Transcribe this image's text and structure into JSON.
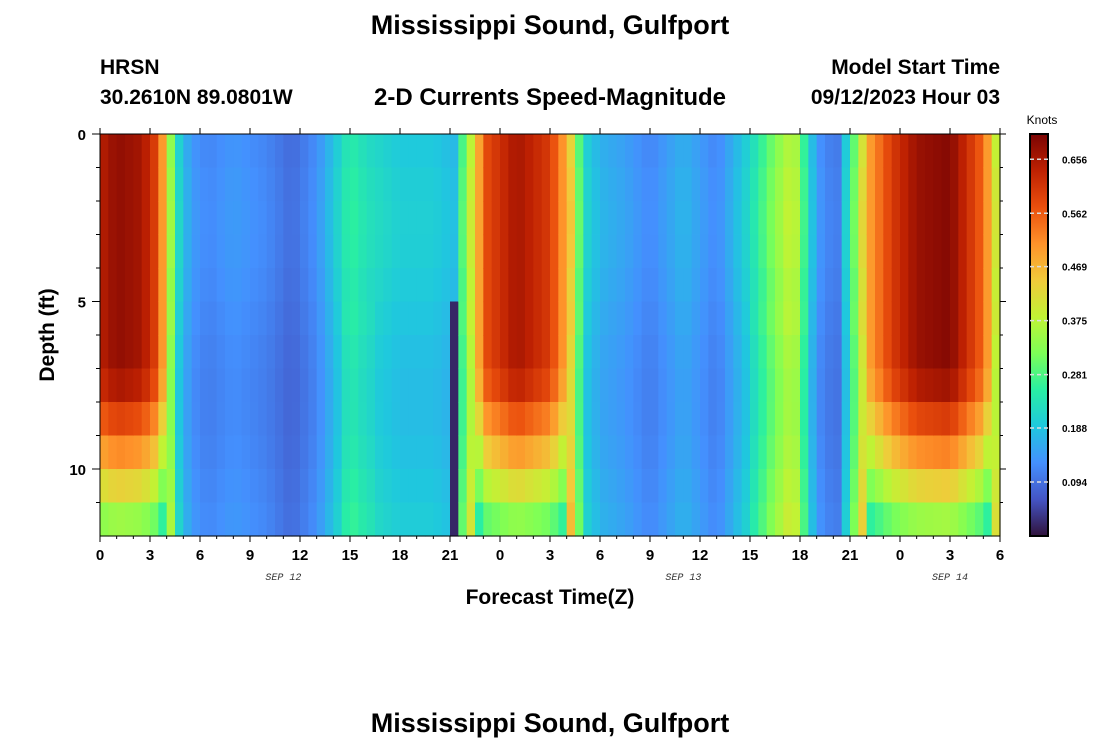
{
  "header": {
    "title": "Mississippi Sound, Gulfport",
    "station": "HRSN",
    "coords": "30.2610N  89.0801W",
    "subtitle": "2-D Currents Speed-Magnitude",
    "mst_label": "Model Start Time",
    "mst_value": "09/12/2023 Hour 03"
  },
  "footer": {
    "title": "Mississippi Sound, Gulfport"
  },
  "chart_data": {
    "type": "heatmap",
    "title": "2-D Currents Speed-Magnitude",
    "xlabel": "Forecast Time(Z)",
    "ylabel": "Depth (ft)",
    "x_tick_labels": [
      "0",
      "3",
      "6",
      "9",
      "12",
      "15",
      "18",
      "21",
      "0",
      "3",
      "6",
      "9",
      "12",
      "15",
      "18",
      "21",
      "0",
      "3",
      "6"
    ],
    "x_range_hours": [
      0,
      54
    ],
    "x_tick_step_hours": 3,
    "date_labels": [
      {
        "label": "SEP 12",
        "hour": 11
      },
      {
        "label": "SEP 13",
        "hour": 35
      },
      {
        "label": "SEP 14",
        "hour": 51
      }
    ],
    "y_tick_labels": [
      "0",
      "5",
      "10"
    ],
    "y_range_ft": [
      0,
      12
    ],
    "y_reversed": true,
    "colorbar": {
      "unit": "Knots",
      "tick_labels": [
        "0.656",
        "0.562",
        "0.469",
        "0.375",
        "0.281",
        "0.188",
        "0.094"
      ],
      "range": [
        0,
        0.7
      ],
      "colormap": [
        "#30123b",
        "#4454c4",
        "#4490fe",
        "#1fc8de",
        "#29efa2",
        "#7dff56",
        "#c1f334",
        "#f1ca3a",
        "#fe922a",
        "#ea4f0d",
        "#be2102",
        "#7a0403"
      ]
    },
    "time_step_hours": 0.5,
    "depth_layers_ft": [
      0.5,
      1.5,
      2.5,
      3.5,
      4.5,
      5.5,
      6.5,
      7.5,
      8.5,
      9.5,
      10.5,
      11.5
    ],
    "surface_speed_profile": [
      {
        "hour": 0,
        "speed": 0.64
      },
      {
        "hour": 1,
        "speed": 0.68
      },
      {
        "hour": 2.5,
        "speed": 0.66
      },
      {
        "hour": 3.5,
        "speed": 0.58
      },
      {
        "hour": 4.2,
        "speed": 0.36
      },
      {
        "hour": 4.8,
        "speed": 0.2
      },
      {
        "hour": 5.5,
        "speed": 0.14
      },
      {
        "hour": 6.5,
        "speed": 0.12
      },
      {
        "hour": 8,
        "speed": 0.14
      },
      {
        "hour": 10,
        "speed": 0.12
      },
      {
        "hour": 11.5,
        "speed": 0.09
      },
      {
        "hour": 13,
        "speed": 0.13
      },
      {
        "hour": 14,
        "speed": 0.19
      },
      {
        "hour": 15,
        "speed": 0.26
      },
      {
        "hour": 16,
        "speed": 0.23
      },
      {
        "hour": 18,
        "speed": 0.2
      },
      {
        "hour": 20,
        "speed": 0.2
      },
      {
        "hour": 21.3,
        "speed": 0.18
      },
      {
        "hour": 21.8,
        "speed": 0.3
      },
      {
        "hour": 22.4,
        "speed": 0.42
      },
      {
        "hour": 23.2,
        "speed": 0.58
      },
      {
        "hour": 25,
        "speed": 0.66
      },
      {
        "hour": 27,
        "speed": 0.6
      },
      {
        "hour": 28.3,
        "speed": 0.44
      },
      {
        "hour": 29,
        "speed": 0.22
      },
      {
        "hour": 30,
        "speed": 0.17
      },
      {
        "hour": 31.5,
        "speed": 0.15
      },
      {
        "hour": 33,
        "speed": 0.12
      },
      {
        "hour": 35,
        "speed": 0.17
      },
      {
        "hour": 37,
        "speed": 0.12
      },
      {
        "hour": 39,
        "speed": 0.22
      },
      {
        "hour": 40.5,
        "speed": 0.33
      },
      {
        "hour": 41.6,
        "speed": 0.4
      },
      {
        "hour": 42.3,
        "speed": 0.26
      },
      {
        "hour": 43,
        "speed": 0.14
      },
      {
        "hour": 44.2,
        "speed": 0.1
      },
      {
        "hour": 45,
        "speed": 0.25
      },
      {
        "hour": 46,
        "speed": 0.48
      },
      {
        "hour": 47.5,
        "speed": 0.6
      },
      {
        "hour": 49,
        "speed": 0.67
      },
      {
        "hour": 51,
        "speed": 0.69
      },
      {
        "hour": 53,
        "speed": 0.55
      },
      {
        "hour": 54,
        "speed": 0.35
      }
    ],
    "low_speed_feature": {
      "hour_from": 21,
      "hour_to": 21.6,
      "depth_from_ft": 5.5,
      "speed": 0.02
    }
  }
}
